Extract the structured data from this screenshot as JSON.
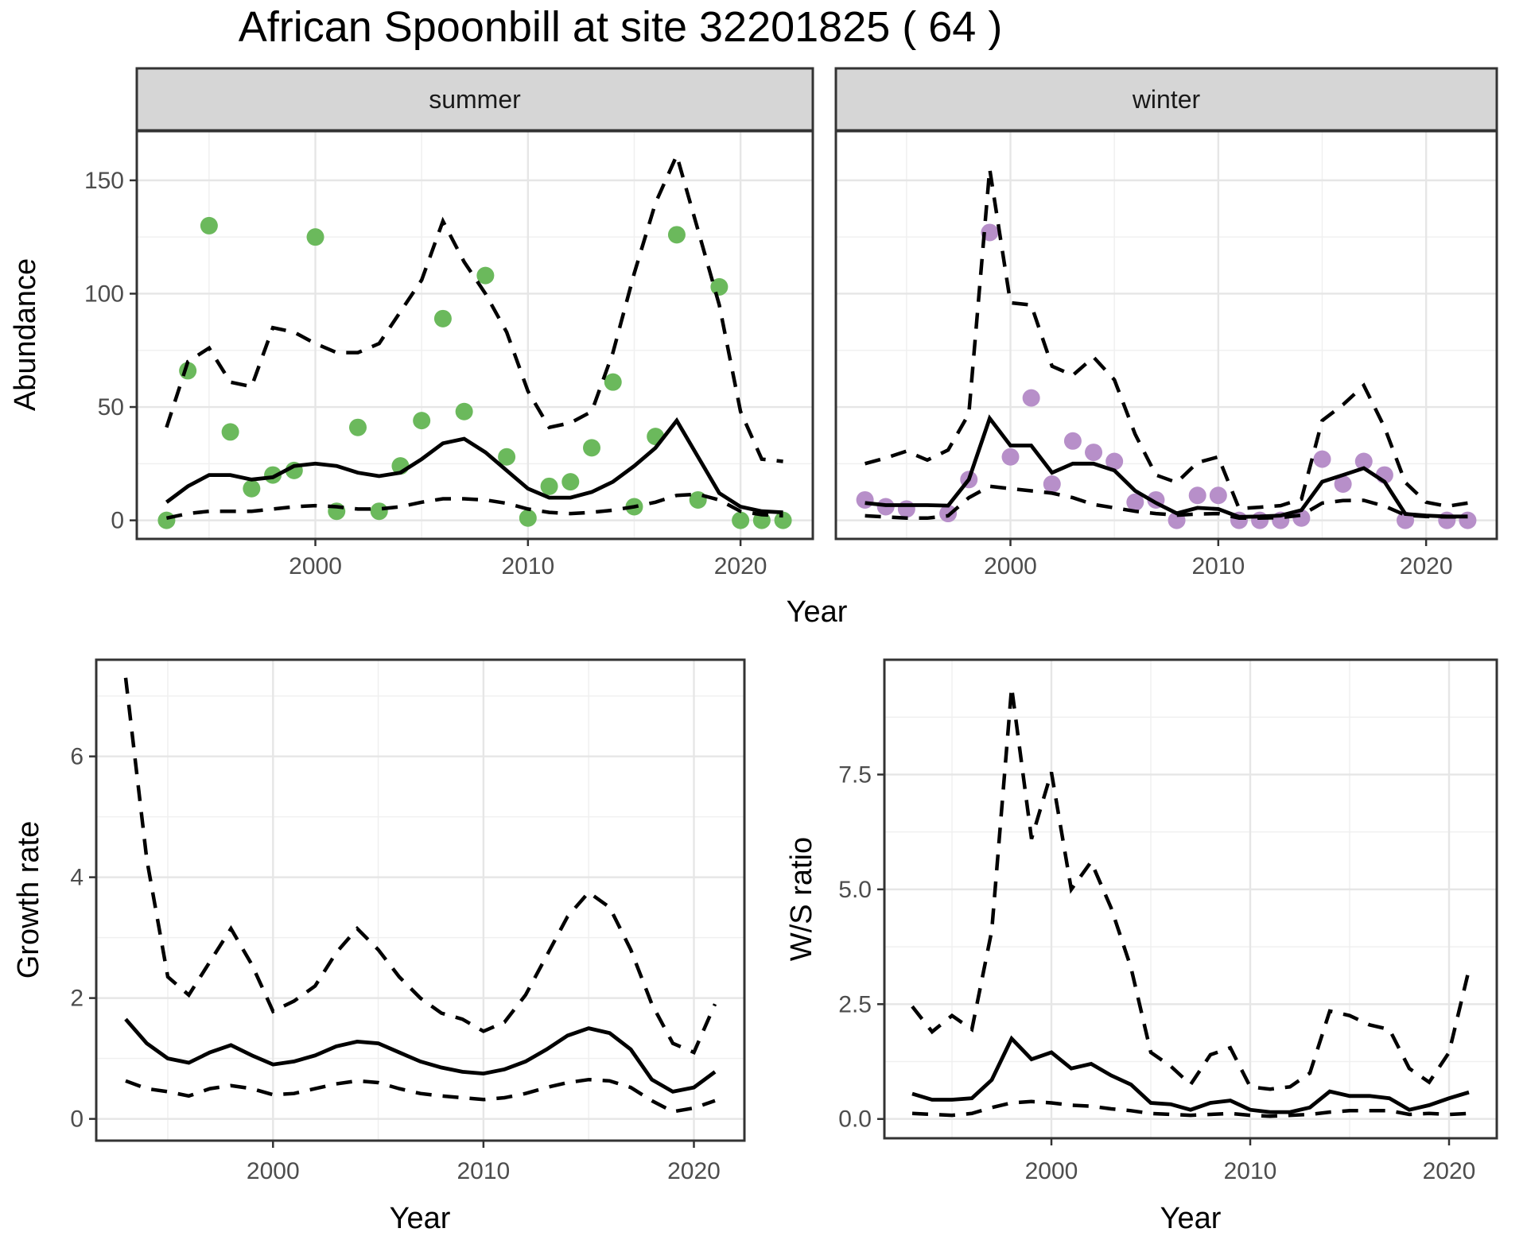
{
  "title": "African Spoonbill at site 32201825 ( 64 )",
  "axes": {
    "x_label": "Year",
    "abundance_label": "Abundance",
    "growth_label": "Growth rate",
    "ws_label": "W/S ratio"
  },
  "colors": {
    "summer_point": "#6BB95C",
    "winter_point": "#B78FC9",
    "line": "#000000",
    "strip_bg": "#D6D6D6",
    "panel_border": "#333333",
    "grid_major": "#E6E6E6",
    "grid_minor": "#F0F0F0",
    "tick_text": "#4D4D4D",
    "axis_title_text": "#000000",
    "strip_text": "#1A1A1A"
  },
  "chart_data": [
    {
      "id": "abundance-summer",
      "type": "line",
      "facet_label": "summer",
      "ylabel": "Abundance",
      "xlabel": "Year",
      "xlim": [
        1991.6,
        2023.4
      ],
      "ylim": [
        -8.2,
        171.7
      ],
      "xticks": [
        2000,
        2010,
        2020
      ],
      "xtick_labels": [
        "2000",
        "2010",
        "2020"
      ],
      "xticks_minor": [
        1995,
        2005,
        2015
      ],
      "yticks": [
        0,
        50,
        100,
        150
      ],
      "ytick_labels": [
        "0",
        "50",
        "100",
        "150"
      ],
      "yticks_minor": [
        25,
        75,
        125
      ],
      "years": [
        1993,
        1994,
        1995,
        1996,
        1997,
        1998,
        1999,
        2000,
        2001,
        2002,
        2003,
        2004,
        2005,
        2006,
        2007,
        2008,
        2009,
        2010,
        2011,
        2012,
        2013,
        2014,
        2015,
        2016,
        2017,
        2018,
        2019,
        2020,
        2021,
        2022
      ],
      "series": [
        {
          "name": "observed-counts",
          "type": "scatter",
          "color": "#6BB95C",
          "x": [
            1993,
            1994,
            1995,
            1996,
            1997,
            1998,
            1999,
            2000,
            2001,
            2002,
            2003,
            2004,
            2005,
            2006,
            2007,
            2008,
            2009,
            2010,
            2011,
            2012,
            2013,
            2014,
            2015,
            2016,
            2017,
            2018,
            2019,
            2020,
            2021,
            2022
          ],
          "y": [
            0,
            66,
            130,
            39,
            14,
            20,
            22,
            125,
            4,
            41,
            4,
            24,
            44,
            89,
            48,
            108,
            28,
            1,
            15,
            17,
            32,
            61,
            6,
            37,
            126,
            9,
            103,
            0,
            0,
            0
          ]
        },
        {
          "name": "model-mean",
          "type": "line",
          "style": "solid",
          "values": [
            8,
            15,
            20,
            20,
            18,
            19,
            24,
            25,
            24,
            21,
            19.5,
            21,
            27,
            34,
            36,
            30,
            22,
            14,
            10,
            10,
            12.5,
            17,
            24,
            32,
            44,
            28,
            12,
            6,
            4,
            3.5
          ]
        },
        {
          "name": "ci-upper",
          "type": "line",
          "style": "dashed",
          "values": [
            41,
            70,
            76,
            61,
            59,
            85,
            83,
            78,
            74,
            74,
            78,
            92,
            106,
            132,
            114,
            100,
            83,
            57,
            41,
            43,
            48,
            74,
            109,
            140,
            161,
            128,
            95,
            48,
            27,
            26
          ]
        },
        {
          "name": "ci-lower",
          "type": "line",
          "style": "dashed",
          "values": [
            1,
            3,
            4,
            4,
            4,
            5,
            6,
            6.5,
            6,
            5,
            5,
            6,
            8,
            9.5,
            9.5,
            9,
            7.5,
            5,
            3.5,
            3,
            3.5,
            4.5,
            6,
            8,
            11,
            11.5,
            9,
            4,
            2.5,
            2
          ]
        }
      ]
    },
    {
      "id": "abundance-winter",
      "type": "line",
      "facet_label": "winter",
      "ylabel": "Abundance",
      "xlabel": "Year",
      "xlim": [
        1991.6,
        2023.4
      ],
      "ylim": [
        -8.2,
        171.7
      ],
      "xticks": [
        2000,
        2010,
        2020
      ],
      "xtick_labels": [
        "2000",
        "2010",
        "2020"
      ],
      "xticks_minor": [
        1995,
        2005,
        2015
      ],
      "yticks": [
        0,
        50,
        100,
        150
      ],
      "ytick_labels": [
        "0",
        "50",
        "100",
        "150"
      ],
      "yticks_minor": [
        25,
        75,
        125
      ],
      "years": [
        1993,
        1994,
        1995,
        1996,
        1997,
        1998,
        1999,
        2000,
        2001,
        2002,
        2003,
        2004,
        2005,
        2006,
        2007,
        2008,
        2009,
        2010,
        2011,
        2012,
        2013,
        2014,
        2015,
        2016,
        2017,
        2018,
        2019,
        2020,
        2021,
        2022
      ],
      "series": [
        {
          "name": "observed-counts",
          "type": "scatter",
          "color": "#B78FC9",
          "x": [
            1993,
            1994,
            1995,
            1997,
            1998,
            1999,
            2000,
            2001,
            2002,
            2003,
            2004,
            2005,
            2006,
            2007,
            2008,
            2009,
            2010,
            2011,
            2012,
            2013,
            2014,
            2015,
            2016,
            2017,
            2018,
            2019,
            2021,
            2022
          ],
          "y": [
            9,
            6,
            5,
            3,
            18,
            127,
            28,
            54,
            16,
            35,
            30,
            26,
            8,
            9,
            0,
            11,
            11,
            0,
            0,
            0,
            1,
            27,
            16,
            26,
            20,
            0,
            0,
            0
          ]
        },
        {
          "name": "model-mean",
          "type": "line",
          "style": "solid",
          "values": [
            7.7,
            6.7,
            6.7,
            6.7,
            6.5,
            18,
            45,
            33,
            33,
            21,
            25,
            25,
            22,
            13,
            7.7,
            3.1,
            5.5,
            5,
            1.5,
            1.7,
            2.1,
            4.5,
            17,
            20,
            23,
            17,
            2.8,
            2.1,
            1.7,
            1.7
          ]
        },
        {
          "name": "ci-upper",
          "type": "line",
          "style": "dashed",
          "values": [
            25,
            27.5,
            30.5,
            26.6,
            31,
            47,
            155,
            96,
            95,
            68,
            64,
            72,
            62,
            38,
            20,
            16.7,
            25.5,
            28,
            5.2,
            5.8,
            6.5,
            9.4,
            44,
            51,
            59.5,
            41,
            16.7,
            8,
            6.2,
            7.6
          ]
        },
        {
          "name": "ci-lower",
          "type": "line",
          "style": "dashed",
          "values": [
            2,
            1.5,
            1,
            1,
            2,
            10,
            15,
            14,
            13,
            12,
            10,
            7,
            5.5,
            4,
            3,
            2.3,
            2.8,
            3,
            1,
            1,
            1.2,
            2.3,
            7.6,
            8.7,
            8.8,
            6.3,
            2.3,
            1.7,
            1.5,
            1.5
          ]
        }
      ]
    },
    {
      "id": "growth-rate",
      "type": "line",
      "facet_label": null,
      "ylabel": "Growth rate",
      "xlabel": "Year",
      "xlim": [
        1991.6,
        2022.4
      ],
      "ylim": [
        -0.36,
        7.6
      ],
      "xticks": [
        2000,
        2010,
        2020
      ],
      "xtick_labels": [
        "2000",
        "2010",
        "2020"
      ],
      "xticks_minor": [
        1995,
        2005,
        2015
      ],
      "yticks": [
        0,
        2,
        4,
        6
      ],
      "ytick_labels": [
        "0",
        "2",
        "4",
        "6"
      ],
      "yticks_minor": [
        1,
        3,
        5,
        7
      ],
      "years": [
        1993,
        1994,
        1995,
        1996,
        1997,
        1998,
        1999,
        2000,
        2001,
        2002,
        2003,
        2004,
        2005,
        2006,
        2007,
        2008,
        2009,
        2010,
        2011,
        2012,
        2013,
        2014,
        2015,
        2016,
        2017,
        2018,
        2019,
        2020,
        2021
      ],
      "series": [
        {
          "name": "model-mean",
          "type": "line",
          "style": "solid",
          "values": [
            1.65,
            1.25,
            1.0,
            0.93,
            1.1,
            1.22,
            1.05,
            0.9,
            0.95,
            1.05,
            1.2,
            1.28,
            1.25,
            1.1,
            0.95,
            0.85,
            0.78,
            0.75,
            0.82,
            0.95,
            1.15,
            1.38,
            1.5,
            1.42,
            1.15,
            0.65,
            0.45,
            0.52,
            0.78
          ]
        },
        {
          "name": "ci-upper",
          "type": "line",
          "style": "dashed",
          "values": [
            7.3,
            4.3,
            2.35,
            2.05,
            2.6,
            3.15,
            2.55,
            1.78,
            1.95,
            2.2,
            2.75,
            3.15,
            2.8,
            2.35,
            2.0,
            1.75,
            1.65,
            1.45,
            1.6,
            2.05,
            2.7,
            3.35,
            3.75,
            3.5,
            2.8,
            1.9,
            1.25,
            1.1,
            1.9
          ]
        },
        {
          "name": "ci-lower",
          "type": "line",
          "style": "dashed",
          "values": [
            0.63,
            0.5,
            0.45,
            0.38,
            0.5,
            0.55,
            0.5,
            0.4,
            0.42,
            0.5,
            0.58,
            0.63,
            0.6,
            0.5,
            0.42,
            0.38,
            0.35,
            0.32,
            0.35,
            0.42,
            0.52,
            0.6,
            0.65,
            0.63,
            0.52,
            0.3,
            0.12,
            0.18,
            0.3
          ]
        }
      ]
    },
    {
      "id": "ws-ratio",
      "type": "line",
      "facet_label": null,
      "ylabel": "W/S ratio",
      "xlabel": "Year",
      "xlim": [
        1991.6,
        2022.4
      ],
      "ylim": [
        -0.42,
        10.0
      ],
      "xticks": [
        2000,
        2010,
        2020
      ],
      "xtick_labels": [
        "2000",
        "2010",
        "2020"
      ],
      "xticks_minor": [
        1995,
        2005,
        2015
      ],
      "yticks": [
        0,
        2.5,
        5,
        7.5
      ],
      "ytick_labels": [
        "0.0",
        "2.5",
        "5.0",
        "7.5"
      ],
      "yticks_minor": [
        1.25,
        3.75,
        6.25,
        8.75
      ],
      "years": [
        1993,
        1994,
        1995,
        1996,
        1997,
        1998,
        1999,
        2000,
        2001,
        2002,
        2003,
        2004,
        2005,
        2006,
        2007,
        2008,
        2009,
        2010,
        2011,
        2012,
        2013,
        2014,
        2015,
        2016,
        2017,
        2018,
        2019,
        2020,
        2021
      ],
      "series": [
        {
          "name": "model-mean",
          "type": "line",
          "style": "solid",
          "values": [
            0.55,
            0.42,
            0.42,
            0.45,
            0.85,
            1.75,
            1.3,
            1.45,
            1.1,
            1.2,
            0.95,
            0.75,
            0.35,
            0.32,
            0.2,
            0.35,
            0.4,
            0.2,
            0.15,
            0.15,
            0.25,
            0.6,
            0.5,
            0.5,
            0.45,
            0.2,
            0.3,
            0.45,
            0.58
          ]
        },
        {
          "name": "ci-upper",
          "type": "line",
          "style": "dashed",
          "values": [
            2.45,
            1.9,
            2.25,
            1.95,
            4.1,
            9.4,
            6.1,
            7.55,
            5.0,
            5.6,
            4.6,
            3.3,
            1.45,
            1.15,
            0.75,
            1.4,
            1.55,
            0.7,
            0.65,
            0.7,
            1.0,
            2.35,
            2.25,
            2.05,
            1.95,
            1.1,
            0.8,
            1.45,
            3.25
          ]
        },
        {
          "name": "ci-lower",
          "type": "line",
          "style": "dashed",
          "values": [
            0.12,
            0.1,
            0.08,
            0.12,
            0.25,
            0.35,
            0.38,
            0.35,
            0.3,
            0.28,
            0.22,
            0.18,
            0.12,
            0.1,
            0.08,
            0.1,
            0.12,
            0.08,
            0.06,
            0.08,
            0.1,
            0.15,
            0.18,
            0.18,
            0.18,
            0.1,
            0.12,
            0.1,
            0.12
          ]
        }
      ]
    }
  ]
}
